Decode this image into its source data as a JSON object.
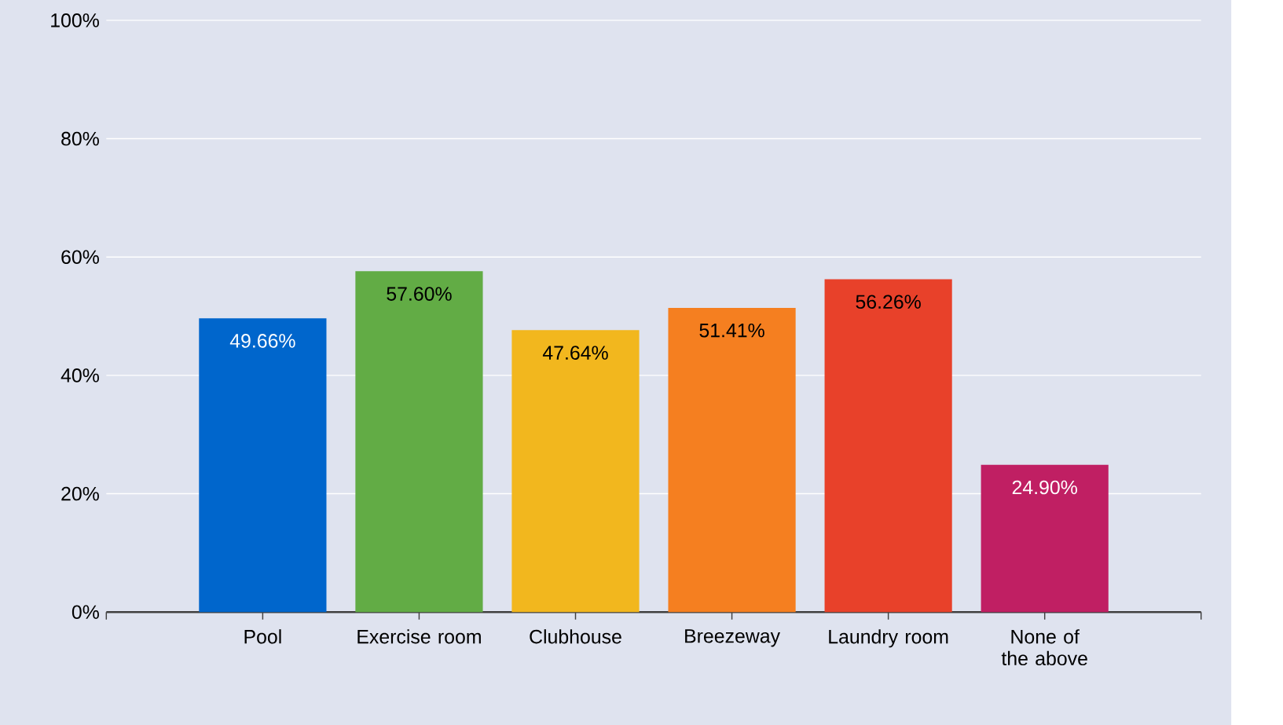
{
  "chart_data": {
    "type": "bar",
    "categories": [
      "Pool",
      "Exercise room",
      "Clubhouse",
      "Breezeway",
      "Laundry room",
      "None of the above"
    ],
    "values": [
      49.66,
      57.6,
      47.64,
      51.41,
      56.26,
      24.9
    ],
    "colors": [
      "#0066cc",
      "#62ac45",
      "#f2b71e",
      "#f57f20",
      "#e8412a",
      "#c01f63"
    ],
    "value_labels": [
      "49.66%",
      "57.60%",
      "47.64%",
      "51.41%",
      "56.26%",
      "24.90%"
    ],
    "ylim": [
      0,
      100
    ],
    "yticks": [
      {
        "value": 0,
        "label": "0%"
      },
      {
        "value": 20,
        "label": "20%"
      },
      {
        "value": 40,
        "label": "40%"
      },
      {
        "value": 60,
        "label": "60%"
      },
      {
        "value": 80,
        "label": "80%"
      },
      {
        "value": 100,
        "label": "100%"
      }
    ],
    "grid": "y"
  }
}
